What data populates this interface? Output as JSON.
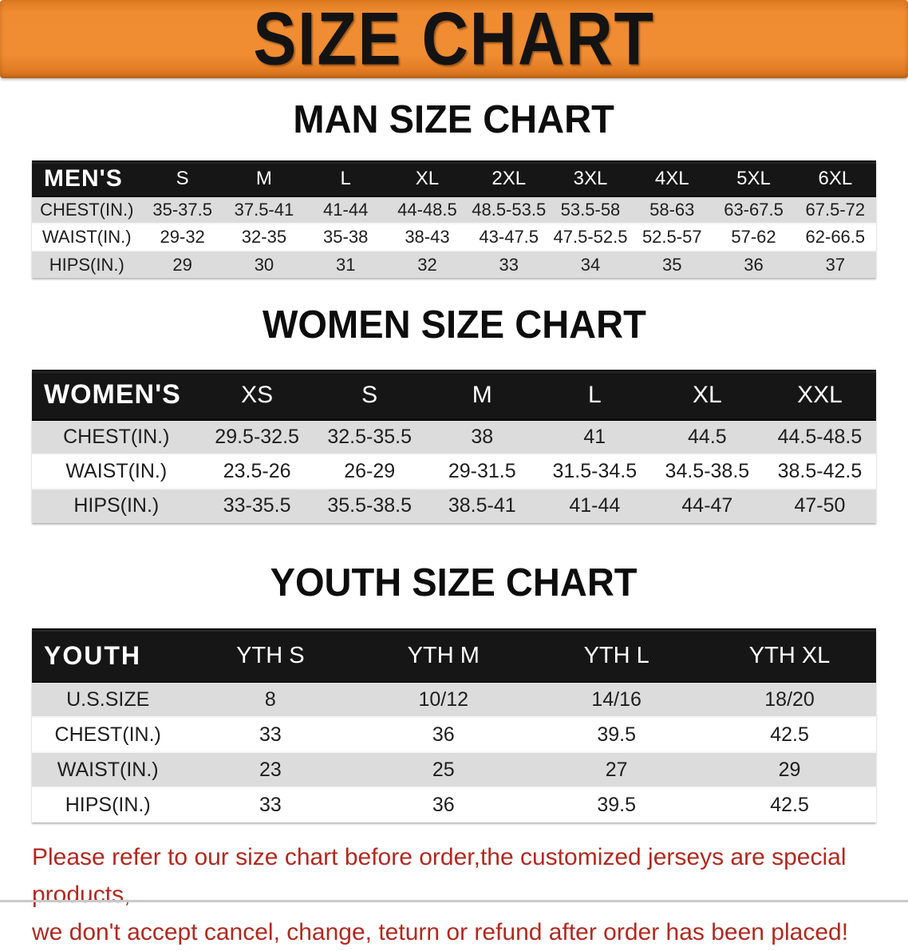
{
  "banner": {
    "title": "SIZE CHART",
    "bg_color": "#EF8C31",
    "text_color": "#131313"
  },
  "sections": [
    {
      "heading": "MAN SIZE CHART",
      "table": {
        "header_label": "MEN'S",
        "columns": [
          "S",
          "M",
          "L",
          "XL",
          "2XL",
          "3XL",
          "4XL",
          "5XL",
          "6XL"
        ],
        "rows": [
          {
            "label": "CHEST(IN.)",
            "values": [
              "35-37.5",
              "37.5-41",
              "41-44",
              "44-48.5",
              "48.5-53.5",
              "53.5-58",
              "58-63",
              "63-67.5",
              "67.5-72"
            ]
          },
          {
            "label": "WAIST(IN.)",
            "values": [
              "29-32",
              "32-35",
              "35-38",
              "38-43",
              "43-47.5",
              "47.5-52.5",
              "52.5-57",
              "57-62",
              "62-66.5"
            ]
          },
          {
            "label": "HIPS(IN.)",
            "values": [
              "29",
              "30",
              "31",
              "32",
              "33",
              "34",
              "35",
              "36",
              "37"
            ]
          }
        ]
      }
    },
    {
      "heading": "WOMEN SIZE CHART",
      "table": {
        "header_label": "WOMEN'S",
        "columns": [
          "XS",
          "S",
          "M",
          "L",
          "XL",
          "XXL"
        ],
        "rows": [
          {
            "label": "CHEST(IN.)",
            "values": [
              "29.5-32.5",
              "32.5-35.5",
              "38",
              "41",
              "44.5",
              "44.5-48.5"
            ]
          },
          {
            "label": "WAIST(IN.)",
            "values": [
              "23.5-26",
              "26-29",
              "29-31.5",
              "31.5-34.5",
              "34.5-38.5",
              "38.5-42.5"
            ]
          },
          {
            "label": "HIPS(IN.)",
            "values": [
              "33-35.5",
              "35.5-38.5",
              "38.5-41",
              "41-44",
              "44-47",
              "47-50"
            ]
          }
        ]
      }
    },
    {
      "heading": "YOUTH SIZE CHART",
      "table": {
        "header_label": "YOUTH",
        "columns": [
          "YTH S",
          "YTH M",
          "YTH L",
          "YTH XL"
        ],
        "rows": [
          {
            "label": "U.S.SIZE",
            "values": [
              "8",
              "10/12",
              "14/16",
              "18/20"
            ]
          },
          {
            "label": "CHEST(IN.)",
            "values": [
              "33",
              "36",
              "39.5",
              "42.5"
            ]
          },
          {
            "label": "WAIST(IN.)",
            "values": [
              "23",
              "25",
              "27",
              "29"
            ]
          },
          {
            "label": "HIPS(IN.)",
            "values": [
              "33",
              "36",
              "39.5",
              "42.5"
            ]
          }
        ]
      }
    }
  ],
  "disclaimer": {
    "line1": "Please refer to our size chart before order,the customized jerseys are special products,",
    "line2": "we don't accept cancel, change, teturn or refund after order has been placed!",
    "text_color": "#B1291F"
  },
  "colors": {
    "table_header_bar_bg": "#161616",
    "table_header_bar_text": "#FFFFFF",
    "stripe_row_bg": "#DCDCDC"
  }
}
